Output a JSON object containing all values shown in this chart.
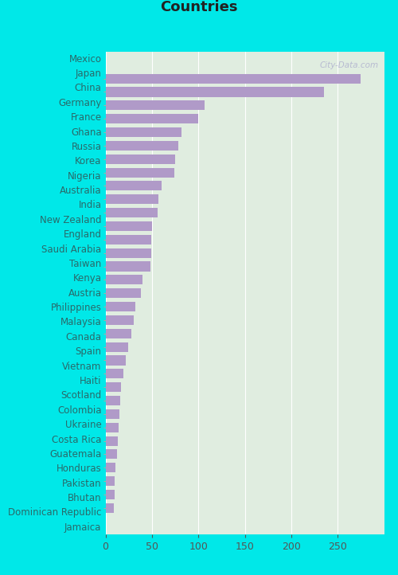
{
  "categories": [
    "Mexico",
    "Japan",
    "China",
    "Germany",
    "France",
    "Ghana",
    "Russia",
    "Korea",
    "Nigeria",
    "Australia",
    "India",
    "New Zealand",
    "England",
    "Saudi Arabia",
    "Taiwan",
    "Kenya",
    "Austria",
    "Philippines",
    "Malaysia",
    "Canada",
    "Spain",
    "Vietnam",
    "Haiti",
    "Scotland",
    "Colombia",
    "Ukraine",
    "Costa Rica",
    "Guatemala",
    "Honduras",
    "Pakistan",
    "Bhutan",
    "Dominican Republic",
    "Jamaica"
  ],
  "values": [
    275,
    235,
    107,
    100,
    82,
    78,
    75,
    74,
    60,
    57,
    56,
    50,
    49,
    49,
    48,
    40,
    38,
    32,
    30,
    28,
    24,
    22,
    19,
    17,
    16,
    15,
    14,
    13,
    12,
    11,
    10,
    10,
    9
  ],
  "bar_color": "#b09ac8",
  "background_color_plot": "#e0ede0",
  "background_color_fig": "#00e8e8",
  "label_color": "#2a6a6a",
  "tick_color": "#555555",
  "title_color": "#222222",
  "xlim": [
    0,
    300
  ],
  "xticks": [
    0,
    50,
    100,
    150,
    200,
    250
  ],
  "watermark": "City-Data.com",
  "title_fontsize": 13,
  "label_fontsize": 8.5,
  "tick_fontsize": 9
}
